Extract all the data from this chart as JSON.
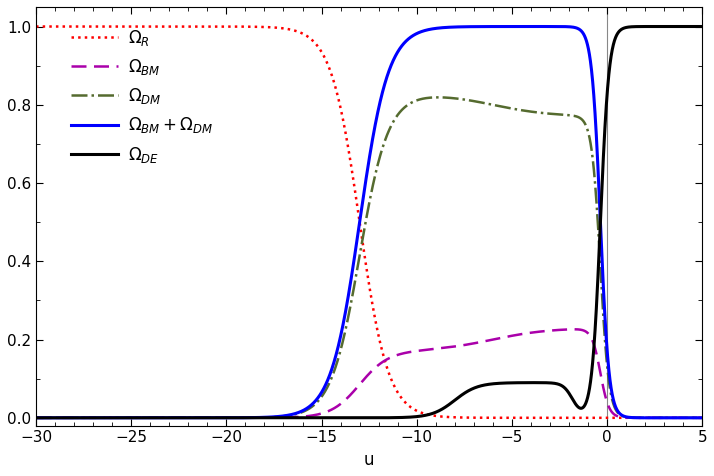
{
  "xlim": [
    -30,
    5
  ],
  "ylim": [
    -0.02,
    1.05
  ],
  "xlabel": "u",
  "xticks": [
    -30,
    -25,
    -20,
    -15,
    -10,
    -5,
    0,
    5
  ],
  "yticks": [
    0.0,
    0.2,
    0.4,
    0.6,
    0.8,
    1.0
  ],
  "vline_x": 0,
  "background_color": "#ffffff",
  "curve_colors": {
    "omega_R": "#ff0000",
    "omega_BM": "#aa00aa",
    "omega_DM": "#556b2f",
    "omega_total": "#0000ff",
    "omega_DE": "#000000"
  },
  "legend_labels": {
    "omega_R": "$\\Omega_R$",
    "omega_BM": "$\\Omega_{BM}$",
    "omega_DM": "$\\Omega_{DM}$",
    "omega_total": "$\\Omega_{BM}+\\Omega_{DM}$",
    "omega_DE": "$\\Omega_{DE}$"
  },
  "line_widths": {
    "omega_R": 1.8,
    "omega_BM": 1.8,
    "omega_DM": 1.8,
    "omega_total": 2.2,
    "omega_DE": 2.2
  }
}
